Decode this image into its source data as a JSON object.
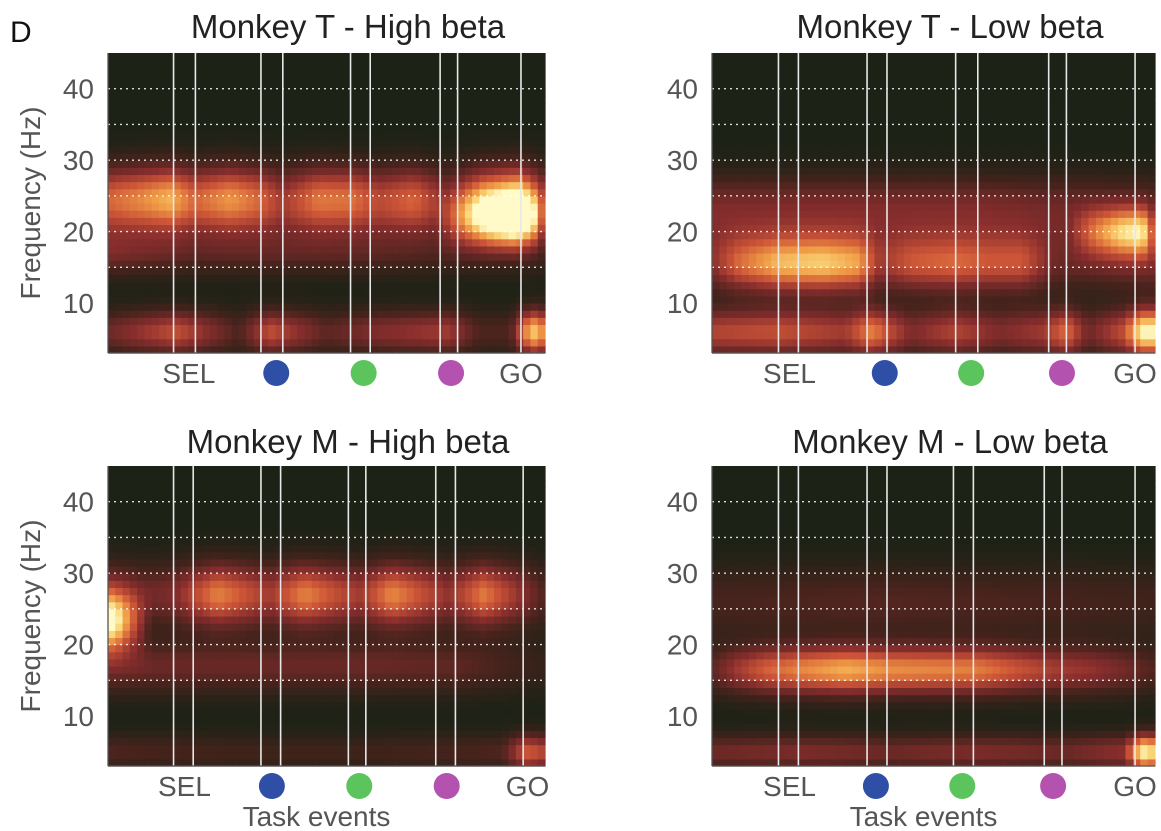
{
  "figure_label": "D",
  "colors": {
    "background_dark": "#1c2216",
    "vline": "#e8e8e8",
    "gridline": "#ffffff",
    "event_blue": "#2f4fa6",
    "event_green": "#5cc45c",
    "event_magenta": "#b452b0",
    "axis": "#555555"
  },
  "chart_data": [
    {
      "type": "heatmap",
      "title": "Monkey T - High beta",
      "xlabel": "",
      "ylabel": "Frequency (Hz)",
      "ylim": [
        3,
        45
      ],
      "yticks": [
        10,
        20,
        30,
        40
      ],
      "dotted_gridlines_hz": [
        15,
        20,
        25,
        30,
        35,
        40
      ],
      "grid": true,
      "event_labels": [
        "SEL",
        "blue-dot",
        "green-dot",
        "magenta-dot",
        "GO"
      ],
      "event_text": {
        "SEL": "SEL",
        "GO": "GO"
      },
      "vertical_line_positions": [
        0.15,
        0.2,
        0.35,
        0.4,
        0.555,
        0.6,
        0.76,
        0.8,
        0.945
      ],
      "event_tick_positions": [
        0.185,
        0.385,
        0.585,
        0.785,
        0.945
      ],
      "bands": [
        {
          "freq_hz": 25,
          "width_hz": 3.2,
          "x": [
            0.0,
            0.08,
            0.14,
            0.2,
            0.28,
            0.35,
            0.4,
            0.48,
            0.56,
            0.62,
            0.7,
            0.78,
            0.86,
            0.94,
            1.0
          ],
          "intensity": [
            0.55,
            0.65,
            0.75,
            0.55,
            0.68,
            0.55,
            0.38,
            0.6,
            0.58,
            0.45,
            0.55,
            0.3,
            0.65,
            0.8,
            0.35
          ]
        },
        {
          "freq_hz": 21.5,
          "width_hz": 2.6,
          "x": [
            0.75,
            0.82,
            0.88,
            0.93,
            0.97,
            1.0
          ],
          "intensity": [
            0.15,
            0.55,
            0.85,
            1.0,
            0.75,
            0.2
          ]
        },
        {
          "freq_hz": 17,
          "width_hz": 2.2,
          "x": [
            0.0,
            0.2,
            0.4,
            0.6,
            0.8,
            1.0
          ],
          "intensity": [
            0.3,
            0.2,
            0.22,
            0.2,
            0.15,
            0.1
          ]
        },
        {
          "freq_hz": 6,
          "width_hz": 2.2,
          "x": [
            0.0,
            0.16,
            0.3,
            0.37,
            0.5,
            0.6,
            0.78,
            0.85,
            0.92,
            0.97,
            1.0
          ],
          "intensity": [
            0.3,
            0.55,
            0.2,
            0.55,
            0.25,
            0.35,
            0.45,
            0.2,
            0.2,
            0.9,
            0.7
          ]
        }
      ]
    },
    {
      "type": "heatmap",
      "title": "Monkey T - Low beta",
      "xlabel": "",
      "ylabel": "",
      "ylim": [
        3,
        45
      ],
      "yticks": [
        10,
        20,
        30,
        40
      ],
      "dotted_gridlines_hz": [
        15,
        20,
        25,
        30,
        35,
        40
      ],
      "grid": true,
      "event_labels": [
        "SEL",
        "blue-dot",
        "green-dot",
        "magenta-dot",
        "GO"
      ],
      "event_text": {
        "SEL": "SEL",
        "GO": "GO"
      },
      "vertical_line_positions": [
        0.15,
        0.195,
        0.35,
        0.395,
        0.55,
        0.6,
        0.76,
        0.8,
        0.955
      ],
      "event_tick_positions": [
        0.175,
        0.39,
        0.585,
        0.79,
        0.955
      ],
      "bands": [
        {
          "freq_hz": 15.5,
          "width_hz": 2.8,
          "x": [
            0.0,
            0.06,
            0.15,
            0.25,
            0.33,
            0.38,
            0.45,
            0.55,
            0.62,
            0.7,
            0.78,
            0.85,
            1.0
          ],
          "intensity": [
            0.35,
            0.6,
            0.8,
            0.85,
            0.75,
            0.4,
            0.55,
            0.6,
            0.55,
            0.55,
            0.25,
            0.25,
            0.3
          ]
        },
        {
          "freq_hz": 20,
          "width_hz": 2.4,
          "x": [
            0.8,
            0.86,
            0.92,
            0.97,
            1.0
          ],
          "intensity": [
            0.15,
            0.5,
            0.75,
            0.85,
            0.3
          ]
        },
        {
          "freq_hz": 24,
          "width_hz": 3.0,
          "x": [
            0.0,
            0.2,
            0.4,
            0.6,
            0.8,
            1.0
          ],
          "intensity": [
            0.3,
            0.3,
            0.3,
            0.3,
            0.25,
            0.2
          ]
        },
        {
          "freq_hz": 6,
          "width_hz": 2.4,
          "x": [
            0.0,
            0.15,
            0.3,
            0.36,
            0.45,
            0.55,
            0.65,
            0.75,
            0.8,
            0.85,
            0.93,
            0.97,
            1.0
          ],
          "intensity": [
            0.5,
            0.55,
            0.45,
            0.7,
            0.35,
            0.5,
            0.35,
            0.45,
            0.65,
            0.3,
            0.55,
            1.0,
            1.0
          ]
        }
      ]
    },
    {
      "type": "heatmap",
      "title": "Monkey M - High beta",
      "xlabel": "Task events",
      "ylabel": "Frequency (Hz)",
      "ylim": [
        3,
        45
      ],
      "yticks": [
        10,
        20,
        30,
        40
      ],
      "dotted_gridlines_hz": [
        15,
        20,
        25,
        30,
        35,
        40
      ],
      "grid": true,
      "event_labels": [
        "SEL",
        "blue-dot",
        "green-dot",
        "magenta-dot",
        "GO"
      ],
      "event_text": {
        "SEL": "SEL",
        "GO": "GO"
      },
      "vertical_line_positions": [
        0.15,
        0.195,
        0.35,
        0.395,
        0.55,
        0.59,
        0.75,
        0.795,
        0.95
      ],
      "event_tick_positions": [
        0.175,
        0.375,
        0.575,
        0.775,
        0.96
      ],
      "bands": [
        {
          "freq_hz": 27,
          "width_hz": 3.2,
          "x": [
            0.0,
            0.08,
            0.15,
            0.25,
            0.3,
            0.37,
            0.45,
            0.52,
            0.58,
            0.65,
            0.72,
            0.78,
            0.86,
            0.93,
            1.0
          ],
          "intensity": [
            0.4,
            0.3,
            0.35,
            0.7,
            0.6,
            0.45,
            0.7,
            0.55,
            0.45,
            0.72,
            0.55,
            0.4,
            0.68,
            0.45,
            0.2
          ]
        },
        {
          "freq_hz": 23,
          "width_hz": 2.8,
          "x": [
            0.0,
            0.02,
            0.06,
            0.1
          ],
          "intensity": [
            0.9,
            0.8,
            0.4,
            0.0
          ]
        },
        {
          "freq_hz": 17,
          "width_hz": 2.6,
          "x": [
            0.0,
            0.2,
            0.4,
            0.6,
            0.8,
            1.0
          ],
          "intensity": [
            0.3,
            0.28,
            0.28,
            0.28,
            0.25,
            0.1
          ]
        },
        {
          "freq_hz": 5,
          "width_hz": 1.8,
          "x": [
            0.0,
            0.3,
            0.6,
            0.9,
            0.96,
            1.0
          ],
          "intensity": [
            0.2,
            0.15,
            0.15,
            0.2,
            0.6,
            0.5
          ]
        }
      ]
    },
    {
      "type": "heatmap",
      "title": "Monkey M - Low beta",
      "xlabel": "Task events",
      "ylabel": "",
      "ylim": [
        3,
        45
      ],
      "yticks": [
        10,
        20,
        30,
        40
      ],
      "dotted_gridlines_hz": [
        15,
        20,
        25,
        30,
        35,
        40
      ],
      "grid": true,
      "event_labels": [
        "SEL",
        "blue-dot",
        "green-dot",
        "magenta-dot",
        "GO"
      ],
      "event_text": {
        "SEL": "SEL",
        "GO": "GO"
      },
      "vertical_line_positions": [
        0.15,
        0.195,
        0.35,
        0.395,
        0.545,
        0.59,
        0.75,
        0.79,
        0.955
      ],
      "event_tick_positions": [
        0.175,
        0.37,
        0.565,
        0.77,
        0.955
      ],
      "bands": [
        {
          "freq_hz": 16.5,
          "width_hz": 2.4,
          "x": [
            0.0,
            0.06,
            0.12,
            0.2,
            0.3,
            0.4,
            0.5,
            0.6,
            0.7,
            0.78,
            0.86,
            0.94,
            1.0
          ],
          "intensity": [
            0.25,
            0.45,
            0.6,
            0.7,
            0.8,
            0.72,
            0.7,
            0.68,
            0.55,
            0.45,
            0.4,
            0.3,
            0.2
          ]
        },
        {
          "freq_hz": 26,
          "width_hz": 3.5,
          "x": [
            0.0,
            0.2,
            0.4,
            0.6,
            0.8,
            1.0
          ],
          "intensity": [
            0.18,
            0.2,
            0.22,
            0.2,
            0.18,
            0.15
          ]
        },
        {
          "freq_hz": 5,
          "width_hz": 1.8,
          "x": [
            0.0,
            0.2,
            0.4,
            0.6,
            0.8,
            0.93,
            0.97,
            1.0
          ],
          "intensity": [
            0.3,
            0.35,
            0.3,
            0.35,
            0.3,
            0.4,
            1.0,
            0.9
          ]
        }
      ]
    }
  ]
}
